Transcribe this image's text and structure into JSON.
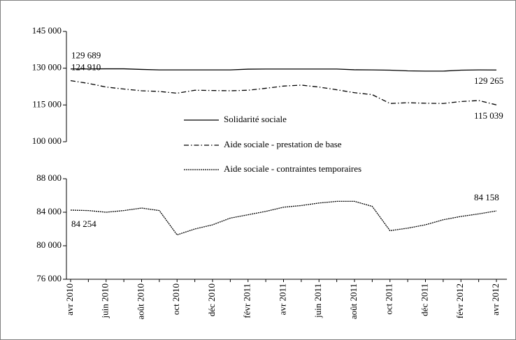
{
  "chart_data": [
    {
      "type": "line",
      "ylim": [
        100000,
        145000
      ],
      "yticks": [
        {
          "value": 100000,
          "label": "100 000"
        },
        {
          "value": 115000,
          "label": "115 000"
        },
        {
          "value": 130000,
          "label": "130 000"
        },
        {
          "value": 145000,
          "label": "145 000"
        }
      ],
      "series": [
        {
          "name": "Solidarité sociale",
          "color": "#000000",
          "dash": "solid",
          "values": [
            129689,
            129700,
            129750,
            129750,
            129500,
            129300,
            129300,
            129300,
            129300,
            129300,
            129600,
            129650,
            129650,
            129650,
            129650,
            129650,
            129350,
            129300,
            129200,
            128900,
            128800,
            128800,
            129200,
            129300,
            129265
          ],
          "value_labels": [
            "129 689",
            null,
            null,
            null,
            null,
            null,
            null,
            null,
            null,
            null,
            null,
            null,
            null,
            null,
            null,
            null,
            null,
            null,
            null,
            null,
            null,
            null,
            null,
            null,
            "129 265"
          ]
        },
        {
          "name": "Aide sociale - prestation de base",
          "color": "#000000",
          "dash": "dashdot",
          "values": [
            124910,
            123800,
            122300,
            121500,
            120800,
            120500,
            119800,
            121000,
            120900,
            120800,
            121000,
            121800,
            122700,
            123100,
            122300,
            121200,
            120000,
            119200,
            115600,
            115900,
            115700,
            115600,
            116400,
            116800,
            115039
          ],
          "value_labels": [
            "124 910",
            null,
            null,
            null,
            null,
            null,
            null,
            null,
            null,
            null,
            null,
            null,
            null,
            null,
            null,
            null,
            null,
            null,
            null,
            null,
            null,
            null,
            null,
            null,
            "115 039"
          ]
        }
      ]
    },
    {
      "type": "line",
      "categories": [
        "avr 2010",
        null,
        "juin 2010",
        null,
        "août 2010",
        null,
        "oct 2010",
        null,
        "déc 2010",
        null,
        "févr 2011",
        null,
        "avr 2011",
        null,
        "juin 2011",
        null,
        "août 2011",
        null,
        "oct 2011",
        null,
        "déc 2011",
        null,
        "févr 2012",
        null,
        "avr 2012"
      ],
      "ylim": [
        76000,
        88000
      ],
      "yticks": [
        {
          "value": 76000,
          "label": "76 000"
        },
        {
          "value": 80000,
          "label": "80 000"
        },
        {
          "value": 84000,
          "label": "84 000"
        },
        {
          "value": 88000,
          "label": "88 000"
        }
      ],
      "series": [
        {
          "name": "Aide sociale - contraintes temporaires",
          "color": "#000000",
          "dash": "dotted",
          "values": [
            84254,
            84200,
            84000,
            84200,
            84500,
            84200,
            81300,
            82000,
            82500,
            83300,
            83700,
            84100,
            84600,
            84800,
            85100,
            85300,
            85300,
            84700,
            81800,
            82100,
            82500,
            83100,
            83500,
            83800,
            84158
          ],
          "value_labels": [
            "84 254",
            null,
            null,
            null,
            null,
            null,
            null,
            null,
            null,
            null,
            null,
            null,
            null,
            null,
            null,
            null,
            null,
            null,
            null,
            null,
            null,
            null,
            null,
            null,
            "84 158"
          ]
        }
      ]
    }
  ]
}
